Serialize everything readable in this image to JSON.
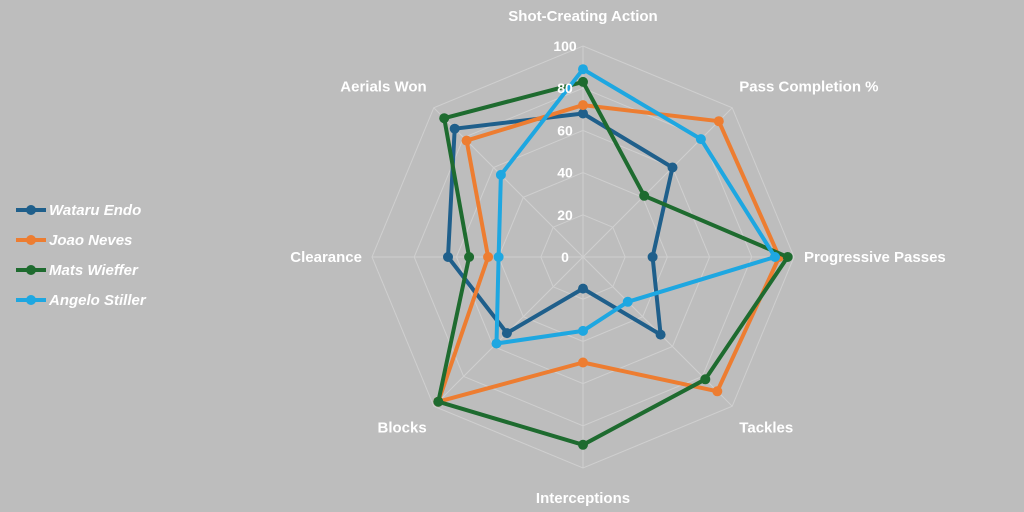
{
  "chart_data": {
    "type": "radar",
    "axes": [
      "Shot-Creating Action",
      "Pass Completion %",
      "Progressive Passes",
      "Tackles",
      "Interceptions",
      "Blocks",
      "Clearance",
      "Aerials Won"
    ],
    "ticks": [
      "0",
      "20",
      "40",
      "60",
      "80",
      "100"
    ],
    "range": [
      0,
      100
    ],
    "legend_position": "left",
    "series": [
      {
        "name": "Wataru Endo",
        "color": "#1f5f8b",
        "values": [
          68,
          60,
          33,
          52,
          15,
          51,
          64,
          86
        ]
      },
      {
        "name": "Joao Neves",
        "color": "#ed7d31",
        "values": [
          72,
          91,
          93,
          90,
          50,
          97,
          45,
          78
        ]
      },
      {
        "name": "Mats Wieffer",
        "color": "#1e6b2f",
        "values": [
          83,
          41,
          97,
          82,
          89,
          97,
          54,
          93
        ]
      },
      {
        "name": "Angelo Stiller",
        "color": "#1ea7e1",
        "values": [
          89,
          79,
          91,
          30,
          35,
          58,
          40,
          55
        ]
      }
    ]
  }
}
